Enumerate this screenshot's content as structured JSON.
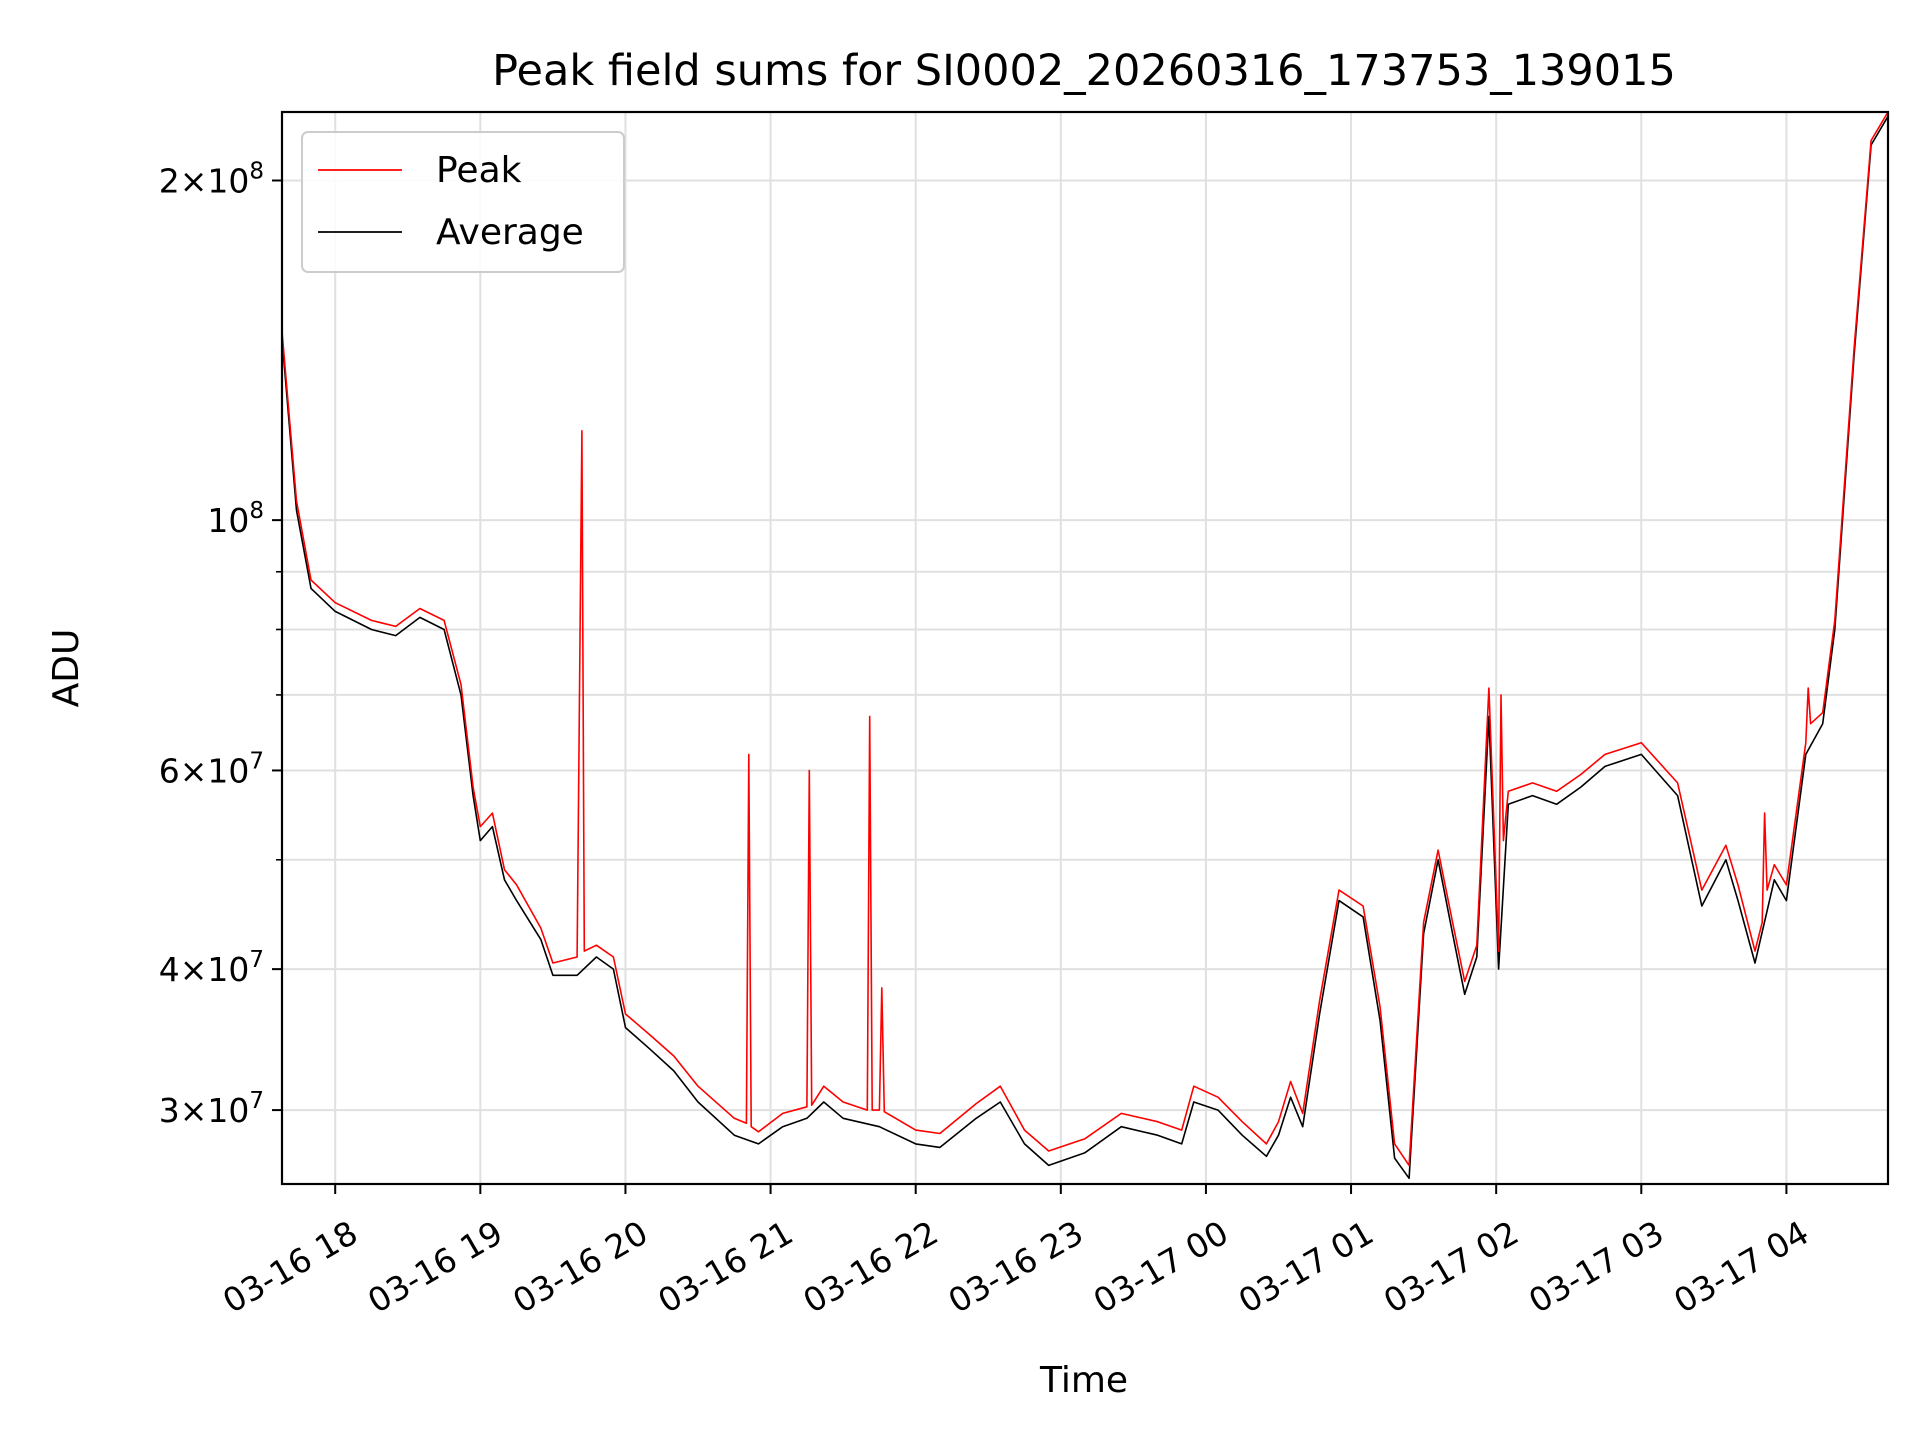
{
  "chart_data": {
    "type": "line",
    "title": "Peak field sums for SI0002_20260316_173753_139015",
    "xlabel": "Time",
    "ylabel": "ADU",
    "yscale": "log",
    "ylim": [
      25800000,
      230000000
    ],
    "xlim": [
      "2026-03-16 17:38",
      "2026-03-17 04:42"
    ],
    "grid": true,
    "legend_position": "upper-left",
    "x_ticks": [
      {
        "value": "2026-03-16 18:00",
        "label": "03-16 18"
      },
      {
        "value": "2026-03-16 19:00",
        "label": "03-16 19"
      },
      {
        "value": "2026-03-16 20:00",
        "label": "03-16 20"
      },
      {
        "value": "2026-03-16 21:00",
        "label": "03-16 21"
      },
      {
        "value": "2026-03-16 22:00",
        "label": "03-16 22"
      },
      {
        "value": "2026-03-16 23:00",
        "label": "03-16 23"
      },
      {
        "value": "2026-03-17 00:00",
        "label": "03-17 00"
      },
      {
        "value": "2026-03-17 01:00",
        "label": "03-17 01"
      },
      {
        "value": "2026-03-17 02:00",
        "label": "03-17 02"
      },
      {
        "value": "2026-03-17 03:00",
        "label": "03-17 03"
      },
      {
        "value": "2026-03-17 04:00",
        "label": "03-17 04"
      }
    ],
    "y_ticks": [
      {
        "value": 200000000,
        "mantissa": "2",
        "exponent": "8"
      },
      {
        "value": 100000000,
        "mantissa": "",
        "exponent": "8"
      },
      {
        "value": 60000000,
        "mantissa": "6",
        "exponent": "7"
      },
      {
        "value": 40000000,
        "mantissa": "4",
        "exponent": "7"
      },
      {
        "value": 30000000,
        "mantissa": "3",
        "exponent": "7"
      }
    ],
    "y_minor_ticks": [
      50000000,
      70000000,
      80000000,
      90000000
    ],
    "series": [
      {
        "name": "Average",
        "color": "#000000",
        "points": [
          [
            "2026-03-16 17:38",
            145000000
          ],
          [
            "2026-03-16 17:44",
            102000000
          ],
          [
            "2026-03-16 17:50",
            87000000
          ],
          [
            "2026-03-16 18:00",
            83000000
          ],
          [
            "2026-03-16 18:15",
            80000000
          ],
          [
            "2026-03-16 18:25",
            79000000
          ],
          [
            "2026-03-16 18:35",
            82000000
          ],
          [
            "2026-03-16 18:45",
            80000000
          ],
          [
            "2026-03-16 18:52",
            70000000
          ],
          [
            "2026-03-16 18:57",
            57000000
          ],
          [
            "2026-03-16 19:00",
            52000000
          ],
          [
            "2026-03-16 19:05",
            53500000
          ],
          [
            "2026-03-16 19:10",
            48000000
          ],
          [
            "2026-03-16 19:15",
            46000000
          ],
          [
            "2026-03-16 19:25",
            42500000
          ],
          [
            "2026-03-16 19:30",
            39500000
          ],
          [
            "2026-03-16 19:40",
            39500000
          ],
          [
            "2026-03-16 19:48",
            41000000
          ],
          [
            "2026-03-16 19:55",
            40000000
          ],
          [
            "2026-03-16 20:00",
            35500000
          ],
          [
            "2026-03-16 20:10",
            34000000
          ],
          [
            "2026-03-16 20:20",
            32500000
          ],
          [
            "2026-03-16 20:30",
            30500000
          ],
          [
            "2026-03-16 20:45",
            28500000
          ],
          [
            "2026-03-16 20:55",
            28000000
          ],
          [
            "2026-03-16 21:05",
            29000000
          ],
          [
            "2026-03-16 21:15",
            29500000
          ],
          [
            "2026-03-16 21:22",
            30500000
          ],
          [
            "2026-03-16 21:30",
            29500000
          ],
          [
            "2026-03-16 21:45",
            29000000
          ],
          [
            "2026-03-16 22:00",
            28000000
          ],
          [
            "2026-03-16 22:10",
            27800000
          ],
          [
            "2026-03-16 22:25",
            29500000
          ],
          [
            "2026-03-16 22:35",
            30500000
          ],
          [
            "2026-03-16 22:45",
            28000000
          ],
          [
            "2026-03-16 22:55",
            26800000
          ],
          [
            "2026-03-16 23:10",
            27500000
          ],
          [
            "2026-03-16 23:25",
            29000000
          ],
          [
            "2026-03-16 23:40",
            28500000
          ],
          [
            "2026-03-16 23:50",
            28000000
          ],
          [
            "2026-03-16 23:55",
            30500000
          ],
          [
            "2026-03-17 00:05",
            30000000
          ],
          [
            "2026-03-17 00:15",
            28500000
          ],
          [
            "2026-03-17 00:25",
            27300000
          ],
          [
            "2026-03-17 00:30",
            28500000
          ],
          [
            "2026-03-17 00:35",
            30800000
          ],
          [
            "2026-03-17 00:40",
            29000000
          ],
          [
            "2026-03-17 00:47",
            36500000
          ],
          [
            "2026-03-17 00:55",
            46000000
          ],
          [
            "2026-03-17 01:05",
            44500000
          ],
          [
            "2026-03-17 01:12",
            36000000
          ],
          [
            "2026-03-17 01:18",
            27200000
          ],
          [
            "2026-03-17 01:24",
            26100000
          ],
          [
            "2026-03-17 01:30",
            43000000
          ],
          [
            "2026-03-17 01:36",
            50000000
          ],
          [
            "2026-03-17 01:42",
            43000000
          ],
          [
            "2026-03-17 01:47",
            38000000
          ],
          [
            "2026-03-17 01:52",
            41000000
          ],
          [
            "2026-03-17 01:57",
            67000000
          ],
          [
            "2026-03-17 02:01",
            40000000
          ],
          [
            "2026-03-17 02:05",
            56000000
          ],
          [
            "2026-03-17 02:15",
            57000000
          ],
          [
            "2026-03-17 02:25",
            56000000
          ],
          [
            "2026-03-17 02:35",
            58000000
          ],
          [
            "2026-03-17 02:45",
            60500000
          ],
          [
            "2026-03-17 03:00",
            62000000
          ],
          [
            "2026-03-17 03:15",
            57000000
          ],
          [
            "2026-03-17 03:25",
            45500000
          ],
          [
            "2026-03-17 03:35",
            50000000
          ],
          [
            "2026-03-17 03:40",
            46000000
          ],
          [
            "2026-03-17 03:47",
            40500000
          ],
          [
            "2026-03-17 03:55",
            48000000
          ],
          [
            "2026-03-17 04:00",
            46000000
          ],
          [
            "2026-03-17 04:08",
            62000000
          ],
          [
            "2026-03-17 04:15",
            66000000
          ],
          [
            "2026-03-17 04:20",
            80000000
          ],
          [
            "2026-03-17 04:28",
            140000000
          ],
          [
            "2026-03-17 04:35",
            215000000
          ],
          [
            "2026-03-17 04:42",
            228000000
          ]
        ]
      },
      {
        "name": "Peak",
        "color": "#ff0000",
        "points": [
          [
            "2026-03-16 17:38",
            147000000
          ],
          [
            "2026-03-16 17:44",
            104000000
          ],
          [
            "2026-03-16 17:50",
            88500000
          ],
          [
            "2026-03-16 18:00",
            84500000
          ],
          [
            "2026-03-16 18:15",
            81500000
          ],
          [
            "2026-03-16 18:25",
            80500000
          ],
          [
            "2026-03-16 18:35",
            83500000
          ],
          [
            "2026-03-16 18:45",
            81500000
          ],
          [
            "2026-03-16 18:52",
            71500000
          ],
          [
            "2026-03-16 18:57",
            58000000
          ],
          [
            "2026-03-16 19:00",
            53500000
          ],
          [
            "2026-03-16 19:05",
            55000000
          ],
          [
            "2026-03-16 19:10",
            49000000
          ],
          [
            "2026-03-16 19:15",
            47500000
          ],
          [
            "2026-03-16 19:25",
            43500000
          ],
          [
            "2026-03-16 19:30",
            40500000
          ],
          [
            "2026-03-16 19:40",
            41000000
          ],
          [
            "2026-03-16 19:42",
            120000000
          ],
          [
            "2026-03-16 19:43",
            41500000
          ],
          [
            "2026-03-16 19:48",
            42000000
          ],
          [
            "2026-03-16 19:55",
            41000000
          ],
          [
            "2026-03-16 20:00",
            36500000
          ],
          [
            "2026-03-16 20:10",
            35000000
          ],
          [
            "2026-03-16 20:20",
            33500000
          ],
          [
            "2026-03-16 20:30",
            31500000
          ],
          [
            "2026-03-16 20:45",
            29500000
          ],
          [
            "2026-03-16 20:50",
            29200000
          ],
          [
            "2026-03-16 20:51",
            62000000
          ],
          [
            "2026-03-16 20:52",
            29000000
          ],
          [
            "2026-03-16 20:55",
            28700000
          ],
          [
            "2026-03-16 21:05",
            29800000
          ],
          [
            "2026-03-16 21:15",
            30200000
          ],
          [
            "2026-03-16 21:16",
            60000000
          ],
          [
            "2026-03-16 21:17",
            30300000
          ],
          [
            "2026-03-16 21:22",
            31500000
          ],
          [
            "2026-03-16 21:30",
            30500000
          ],
          [
            "2026-03-16 21:40",
            30000000
          ],
          [
            "2026-03-16 21:41",
            67000000
          ],
          [
            "2026-03-16 21:42",
            30000000
          ],
          [
            "2026-03-16 21:45",
            30000000
          ],
          [
            "2026-03-16 21:46",
            38500000
          ],
          [
            "2026-03-16 21:47",
            29900000
          ],
          [
            "2026-03-16 22:00",
            28800000
          ],
          [
            "2026-03-16 22:10",
            28600000
          ],
          [
            "2026-03-16 22:25",
            30400000
          ],
          [
            "2026-03-16 22:35",
            31500000
          ],
          [
            "2026-03-16 22:45",
            28800000
          ],
          [
            "2026-03-16 22:55",
            27600000
          ],
          [
            "2026-03-16 23:10",
            28300000
          ],
          [
            "2026-03-16 23:25",
            29800000
          ],
          [
            "2026-03-16 23:40",
            29300000
          ],
          [
            "2026-03-16 23:50",
            28800000
          ],
          [
            "2026-03-16 23:55",
            31500000
          ],
          [
            "2026-03-17 00:05",
            30800000
          ],
          [
            "2026-03-17 00:15",
            29300000
          ],
          [
            "2026-03-17 00:25",
            28000000
          ],
          [
            "2026-03-17 00:30",
            29300000
          ],
          [
            "2026-03-17 00:35",
            31800000
          ],
          [
            "2026-03-17 00:40",
            29800000
          ],
          [
            "2026-03-17 00:47",
            37500000
          ],
          [
            "2026-03-17 00:55",
            47000000
          ],
          [
            "2026-03-17 01:05",
            45500000
          ],
          [
            "2026-03-17 01:12",
            37000000
          ],
          [
            "2026-03-17 01:18",
            28000000
          ],
          [
            "2026-03-17 01:24",
            26800000
          ],
          [
            "2026-03-17 01:30",
            44000000
          ],
          [
            "2026-03-17 01:36",
            51000000
          ],
          [
            "2026-03-17 01:42",
            44000000
          ],
          [
            "2026-03-17 01:47",
            39000000
          ],
          [
            "2026-03-17 01:52",
            42000000
          ],
          [
            "2026-03-17 01:57",
            71000000
          ],
          [
            "2026-03-17 02:01",
            41500000
          ],
          [
            "2026-03-17 02:02",
            70000000
          ],
          [
            "2026-03-17 02:03",
            52000000
          ],
          [
            "2026-03-17 02:05",
            57500000
          ],
          [
            "2026-03-17 02:15",
            58500000
          ],
          [
            "2026-03-17 02:25",
            57500000
          ],
          [
            "2026-03-17 02:35",
            59500000
          ],
          [
            "2026-03-17 02:45",
            62000000
          ],
          [
            "2026-03-17 03:00",
            63500000
          ],
          [
            "2026-03-17 03:15",
            58500000
          ],
          [
            "2026-03-17 03:25",
            47000000
          ],
          [
            "2026-03-17 03:35",
            51500000
          ],
          [
            "2026-03-17 03:40",
            47500000
          ],
          [
            "2026-03-17 03:47",
            41500000
          ],
          [
            "2026-03-17 03:50",
            44000000
          ],
          [
            "2026-03-17 03:51",
            55000000
          ],
          [
            "2026-03-17 03:52",
            47000000
          ],
          [
            "2026-03-17 03:55",
            49500000
          ],
          [
            "2026-03-17 04:00",
            47500000
          ],
          [
            "2026-03-17 04:08",
            63500000
          ],
          [
            "2026-03-17 04:09",
            71000000
          ],
          [
            "2026-03-17 04:10",
            66000000
          ],
          [
            "2026-03-17 04:15",
            67500000
          ],
          [
            "2026-03-17 04:20",
            81500000
          ],
          [
            "2026-03-17 04:28",
            142000000
          ],
          [
            "2026-03-17 04:35",
            217000000
          ],
          [
            "2026-03-17 04:42",
            230000000
          ]
        ]
      }
    ],
    "legend": [
      {
        "label": "Peak",
        "color": "#ff0000"
      },
      {
        "label": "Average",
        "color": "#000000"
      }
    ]
  }
}
